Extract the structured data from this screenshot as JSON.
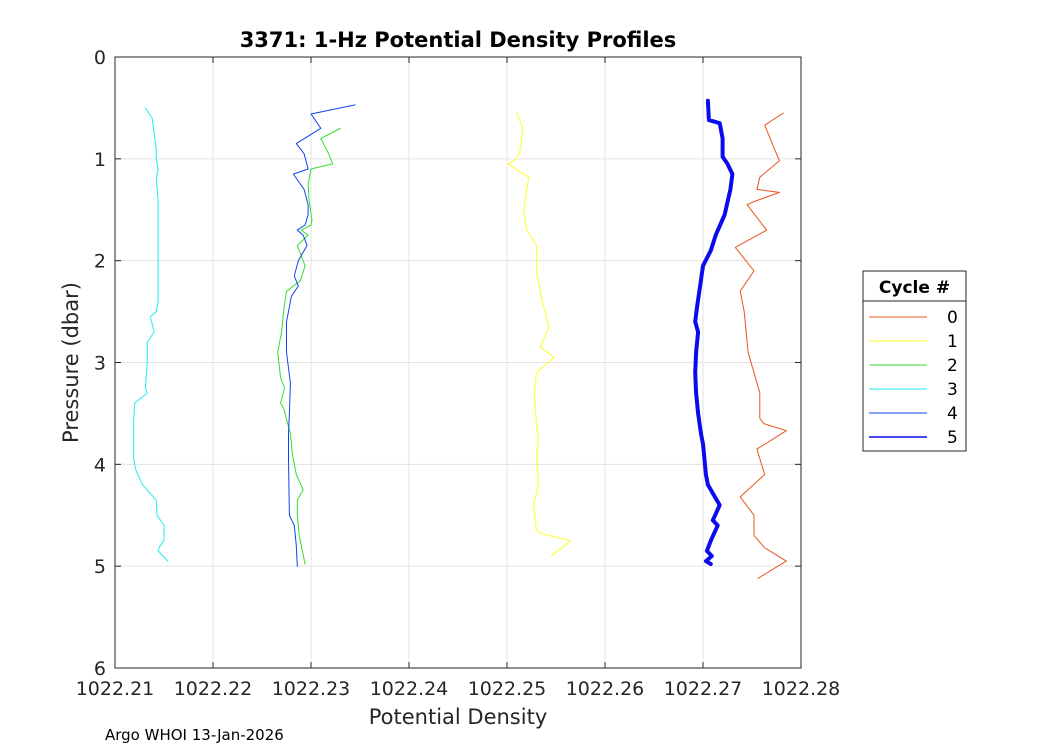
{
  "chart_data": {
    "type": "line",
    "title": "3371: 1-Hz Potential Density Profiles",
    "xlabel": "Potential Density",
    "ylabel": "Pressure (dbar)",
    "xlim": [
      1022.21,
      1022.28
    ],
    "ylim": [
      0,
      6
    ],
    "y_reversed": true,
    "grid": true,
    "xticks": [
      "1022.21",
      "1022.22",
      "1022.23",
      "1022.24",
      "1022.25",
      "1022.26",
      "1022.27",
      "1022.28"
    ],
    "yticks": [
      "0",
      "1",
      "2",
      "3",
      "4",
      "5",
      "6"
    ],
    "legend": {
      "title": "Cycle #",
      "placement": "outside-right"
    },
    "series": [
      {
        "name": "0",
        "color": "#e8541c",
        "width": 1,
        "x": [
          1022.2782,
          1022.2763,
          1022.2778,
          1022.2758,
          1022.2755,
          1022.2778,
          1022.2752,
          1022.2745,
          1022.2765,
          1022.2733,
          1022.2752,
          1022.2738,
          1022.2742,
          1022.2744,
          1022.2746,
          1022.2752,
          1022.2758,
          1022.2758,
          1022.2762,
          1022.2785,
          1022.2755,
          1022.2763,
          1022.2738,
          1022.2752,
          1022.2752,
          1022.2763,
          1022.2785,
          1022.2756
        ],
        "y": [
          0.55,
          0.67,
          1.02,
          1.18,
          1.3,
          1.33,
          1.42,
          1.45,
          1.7,
          1.87,
          2.1,
          2.3,
          2.5,
          2.7,
          2.9,
          3.1,
          3.3,
          3.55,
          3.6,
          3.67,
          3.85,
          4.1,
          4.32,
          4.5,
          4.7,
          4.82,
          4.95,
          5.12
        ]
      },
      {
        "name": "1",
        "color": "#ffff22",
        "width": 1,
        "x": [
          1022.251,
          1022.2516,
          1022.2514,
          1022.251,
          1022.2501,
          1022.2522,
          1022.2517,
          1022.252,
          1022.253,
          1022.253,
          1022.2536,
          1022.2543,
          1022.2534,
          1022.2548,
          1022.253,
          1022.2528,
          1022.253,
          1022.2532,
          1022.253,
          1022.2532,
          1022.2527,
          1022.253,
          1022.2535,
          1022.2565,
          1022.2545
        ],
        "y": [
          0.55,
          0.7,
          0.9,
          1.0,
          1.05,
          1.18,
          1.5,
          1.7,
          1.85,
          2.1,
          2.4,
          2.65,
          2.85,
          2.95,
          3.1,
          3.3,
          3.6,
          3.75,
          3.9,
          4.2,
          4.4,
          4.65,
          4.68,
          4.75,
          4.9
        ]
      },
      {
        "name": "2",
        "color": "#33dd33",
        "width": 1,
        "x": [
          1022.233,
          1022.231,
          1022.2318,
          1022.2322,
          1022.23,
          1022.2297,
          1022.2298,
          1022.2301,
          1022.23,
          1022.229,
          1022.2297,
          1022.2286,
          1022.2294,
          1022.2289,
          1022.2275,
          1022.2272,
          1022.227,
          1022.2266,
          1022.2269,
          1022.2273,
          1022.2269,
          1022.2272,
          1022.2279,
          1022.2281,
          1022.2285,
          1022.2292,
          1022.2286,
          1022.2286,
          1022.2288,
          1022.2294
        ],
        "y": [
          0.7,
          0.8,
          0.95,
          1.05,
          1.1,
          1.25,
          1.4,
          1.6,
          1.65,
          1.7,
          1.75,
          1.85,
          2.05,
          2.2,
          2.3,
          2.5,
          2.7,
          2.9,
          3.15,
          3.25,
          3.4,
          3.45,
          3.7,
          3.9,
          4.1,
          4.25,
          4.35,
          4.5,
          4.7,
          4.98
        ]
      },
      {
        "name": "3",
        "color": "#22eeee",
        "width": 1,
        "x": [
          1022.2131,
          1022.2138,
          1022.214,
          1022.2142,
          1022.2142,
          1022.2144,
          1022.2142,
          1022.2144,
          1022.2144,
          1022.2144,
          1022.2142,
          1022.2136,
          1022.214,
          1022.2133,
          1022.2133,
          1022.2131,
          1022.2133,
          1022.212,
          1022.2119,
          1022.2119,
          1022.2119,
          1022.2121,
          1022.2128,
          1022.2142,
          1022.2143,
          1022.215,
          1022.215,
          1022.2146,
          1022.2144,
          1022.2154
        ],
        "y": [
          0.5,
          0.6,
          0.75,
          0.9,
          1.0,
          1.1,
          1.2,
          1.4,
          1.8,
          2.4,
          2.5,
          2.55,
          2.7,
          2.8,
          3.0,
          3.25,
          3.3,
          3.4,
          3.6,
          3.8,
          3.95,
          4.05,
          4.2,
          4.35,
          4.5,
          4.6,
          4.75,
          4.8,
          4.85,
          4.95
        ]
      },
      {
        "name": "4",
        "color": "#1144ee",
        "width": 1,
        "x": [
          1022.2345,
          1022.23,
          1022.231,
          1022.2285,
          1022.2293,
          1022.2297,
          1022.2282,
          1022.2293,
          1022.2297,
          1022.2297,
          1022.2294,
          1022.2286,
          1022.2292,
          1022.2296,
          1022.2287,
          1022.2283,
          1022.2287,
          1022.228,
          1022.2275,
          1022.2275,
          1022.2279,
          1022.2278,
          1022.2277,
          1022.2277,
          1022.2278,
          1022.2283,
          1022.2285,
          1022.2286
        ],
        "y": [
          0.47,
          0.56,
          0.7,
          0.85,
          0.95,
          1.1,
          1.15,
          1.3,
          1.45,
          1.55,
          1.65,
          1.7,
          1.75,
          1.85,
          2.0,
          2.15,
          2.25,
          2.35,
          2.6,
          2.9,
          3.2,
          3.5,
          3.7,
          3.95,
          4.5,
          4.6,
          4.8,
          5.0
        ]
      },
      {
        "name": "5",
        "color": "#0b0bee",
        "width": 4,
        "x": [
          1022.2705,
          1022.2706,
          1022.2717,
          1022.272,
          1022.272,
          1022.2725,
          1022.273,
          1022.2728,
          1022.2722,
          1022.2713,
          1022.2708,
          1022.27,
          1022.2697,
          1022.2694,
          1022.2692,
          1022.2695,
          1022.2693,
          1022.2692,
          1022.2693,
          1022.2695,
          1022.2698,
          1022.27,
          1022.2701,
          1022.2703,
          1022.2705,
          1022.2714,
          1022.2717,
          1022.271,
          1022.2715,
          1022.2708,
          1022.2704,
          1022.2709,
          1022.2703,
          1022.2708
        ],
        "y": [
          0.43,
          0.62,
          0.65,
          0.8,
          0.98,
          1.05,
          1.15,
          1.3,
          1.55,
          1.75,
          1.9,
          2.05,
          2.25,
          2.45,
          2.6,
          2.7,
          2.9,
          3.1,
          3.3,
          3.5,
          3.7,
          3.8,
          3.9,
          4.1,
          4.2,
          4.35,
          4.4,
          4.55,
          4.6,
          4.75,
          4.85,
          4.9,
          4.95,
          4.98
        ]
      }
    ]
  },
  "footer": "Argo WHOI 13-Jan-2026"
}
